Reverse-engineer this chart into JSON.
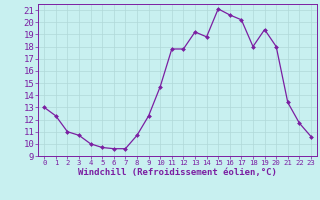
{
  "x": [
    0,
    1,
    2,
    3,
    4,
    5,
    6,
    7,
    8,
    9,
    10,
    11,
    12,
    13,
    14,
    15,
    16,
    17,
    18,
    19,
    20,
    21,
    22,
    23
  ],
  "y": [
    13,
    12.3,
    11,
    10.7,
    10,
    9.7,
    9.6,
    9.6,
    10.7,
    12.3,
    14.7,
    17.8,
    17.8,
    19.2,
    18.8,
    21.1,
    20.6,
    20.2,
    18,
    19.4,
    18,
    13.4,
    11.7,
    10.6
  ],
  "line_color": "#7b1fa2",
  "marker": "D",
  "marker_size": 2.0,
  "bg_color": "#c8f0f0",
  "grid_color": "#b0d8d8",
  "xlabel": "Windchill (Refroidissement éolien,°C)",
  "xlim": [
    -0.5,
    23.5
  ],
  "ylim": [
    9,
    21.5
  ],
  "yticks": [
    9,
    10,
    11,
    12,
    13,
    14,
    15,
    16,
    17,
    18,
    19,
    20,
    21
  ],
  "xticks": [
    0,
    1,
    2,
    3,
    4,
    5,
    6,
    7,
    8,
    9,
    10,
    11,
    12,
    13,
    14,
    15,
    16,
    17,
    18,
    19,
    20,
    21,
    22,
    23
  ],
  "tick_color": "#7b1fa2",
  "label_color": "#7b1fa2",
  "spine_color": "#7b1fa2",
  "ytick_fontsize": 6.5,
  "xtick_fontsize": 5.2,
  "xlabel_fontsize": 6.5
}
